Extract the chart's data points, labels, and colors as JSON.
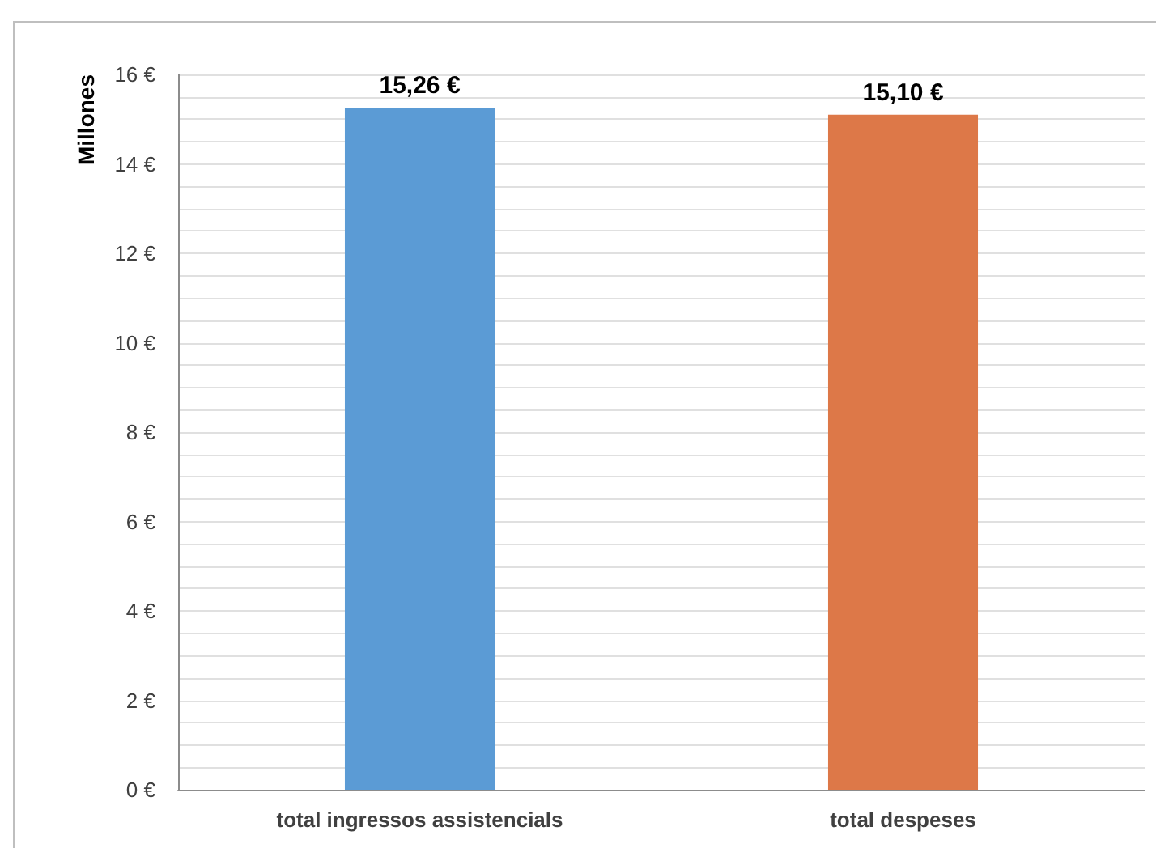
{
  "chart_data": {
    "type": "bar",
    "ylabel": "Millones",
    "categories": [
      "total ingressos assistencials",
      "total despeses"
    ],
    "values": [
      15.26,
      15.1
    ],
    "colors": [
      "#5b9bd5",
      "#dd7848"
    ],
    "value_labels": [
      "15,26 €",
      "15,10 €"
    ],
    "ylim": [
      0,
      16
    ],
    "yticks": [
      {
        "value": 0,
        "label": "0 €"
      },
      {
        "value": 0.5,
        "label": null
      },
      {
        "value": 1,
        "label": null
      },
      {
        "value": 1.5,
        "label": null
      },
      {
        "value": 2,
        "label": "2 €"
      },
      {
        "value": 2.5,
        "label": null
      },
      {
        "value": 3,
        "label": null
      },
      {
        "value": 3.5,
        "label": null
      },
      {
        "value": 4,
        "label": "4 €"
      },
      {
        "value": 4.5,
        "label": null
      },
      {
        "value": 5,
        "label": null
      },
      {
        "value": 5.5,
        "label": null
      },
      {
        "value": 6,
        "label": "6 €"
      },
      {
        "value": 6.5,
        "label": null
      },
      {
        "value": 7,
        "label": null
      },
      {
        "value": 7.5,
        "label": null
      },
      {
        "value": 8,
        "label": "8 €"
      },
      {
        "value": 8.5,
        "label": null
      },
      {
        "value": 9,
        "label": null
      },
      {
        "value": 9.5,
        "label": null
      },
      {
        "value": 10,
        "label": "10 €"
      },
      {
        "value": 10.5,
        "label": null
      },
      {
        "value": 11,
        "label": null
      },
      {
        "value": 11.5,
        "label": null
      },
      {
        "value": 12,
        "label": "12 €"
      },
      {
        "value": 12.5,
        "label": null
      },
      {
        "value": 13,
        "label": null
      },
      {
        "value": 13.5,
        "label": null
      },
      {
        "value": 14,
        "label": "14 €"
      },
      {
        "value": 14.5,
        "label": null
      },
      {
        "value": 15,
        "label": null
      },
      {
        "value": 15.5,
        "label": null
      },
      {
        "value": 16,
        "label": "16 €"
      }
    ],
    "grid": true
  }
}
